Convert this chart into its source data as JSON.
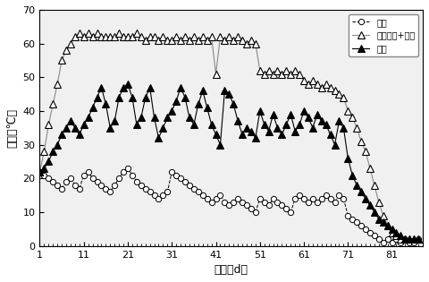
{
  "title": "",
  "xlabel": "时间（d）",
  "ylabel": "温度（℃）",
  "xlim": [
    1,
    88
  ],
  "ylim": [
    0,
    70
  ],
  "yticks": [
    0,
    10,
    20,
    30,
    40,
    50,
    60,
    70
  ],
  "xticks": [
    1,
    11,
    21,
    31,
    41,
    51,
    61,
    71,
    81
  ],
  "legend_labels": [
    "气温",
    "接种菌剂+盖膜",
    "对照"
  ],
  "air_temp_x": [
    1,
    2,
    3,
    4,
    5,
    6,
    7,
    8,
    9,
    10,
    11,
    12,
    13,
    14,
    15,
    16,
    17,
    18,
    19,
    20,
    21,
    22,
    23,
    24,
    25,
    26,
    27,
    28,
    29,
    30,
    31,
    32,
    33,
    34,
    35,
    36,
    37,
    38,
    39,
    40,
    41,
    42,
    43,
    44,
    45,
    46,
    47,
    48,
    49,
    50,
    51,
    52,
    53,
    54,
    55,
    56,
    57,
    58,
    59,
    60,
    61,
    62,
    63,
    64,
    65,
    66,
    67,
    68,
    69,
    70,
    71,
    72,
    73,
    74,
    75,
    76,
    77,
    78,
    79,
    80,
    81,
    82,
    83,
    84,
    85,
    86,
    87
  ],
  "air_temp_y": [
    22,
    21,
    20,
    19,
    18,
    17,
    19,
    20,
    18,
    17,
    21,
    22,
    20,
    19,
    18,
    17,
    16,
    18,
    20,
    22,
    23,
    21,
    19,
    18,
    17,
    16,
    15,
    14,
    15,
    16,
    22,
    21,
    20,
    19,
    18,
    17,
    16,
    15,
    14,
    13,
    14,
    15,
    13,
    12,
    13,
    14,
    13,
    12,
    11,
    10,
    14,
    13,
    12,
    14,
    13,
    12,
    11,
    10,
    14,
    15,
    14,
    13,
    14,
    13,
    14,
    15,
    14,
    13,
    15,
    14,
    9,
    8,
    7,
    6,
    5,
    4,
    3,
    2,
    1,
    2,
    1,
    2,
    1,
    2,
    1,
    1,
    2
  ],
  "inoculated_x": [
    1,
    2,
    3,
    4,
    5,
    6,
    7,
    8,
    9,
    10,
    11,
    12,
    13,
    14,
    15,
    16,
    17,
    18,
    19,
    20,
    21,
    22,
    23,
    24,
    25,
    26,
    27,
    28,
    29,
    30,
    31,
    32,
    33,
    34,
    35,
    36,
    37,
    38,
    39,
    40,
    41,
    42,
    43,
    44,
    45,
    46,
    47,
    48,
    49,
    50,
    51,
    52,
    53,
    54,
    55,
    56,
    57,
    58,
    59,
    60,
    61,
    62,
    63,
    64,
    65,
    66,
    67,
    68,
    69,
    70,
    71,
    72,
    73,
    74,
    75,
    76,
    77,
    78,
    79,
    80,
    81,
    82,
    83,
    84,
    85,
    86,
    87
  ],
  "inoculated_y": [
    22,
    28,
    36,
    42,
    48,
    55,
    58,
    60,
    62,
    63,
    62,
    63,
    62,
    63,
    62,
    62,
    62,
    62,
    63,
    62,
    62,
    62,
    63,
    62,
    61,
    62,
    62,
    61,
    62,
    61,
    61,
    62,
    61,
    62,
    61,
    62,
    61,
    62,
    61,
    62,
    51,
    62,
    61,
    62,
    61,
    62,
    61,
    60,
    61,
    60,
    52,
    51,
    52,
    51,
    52,
    51,
    52,
    51,
    52,
    51,
    49,
    48,
    49,
    48,
    47,
    48,
    47,
    46,
    45,
    44,
    40,
    38,
    35,
    31,
    28,
    23,
    18,
    13,
    9,
    6,
    4,
    3,
    2,
    2,
    2,
    2,
    2
  ],
  "control_x": [
    1,
    2,
    3,
    4,
    5,
    6,
    7,
    8,
    9,
    10,
    11,
    12,
    13,
    14,
    15,
    16,
    17,
    18,
    19,
    20,
    21,
    22,
    23,
    24,
    25,
    26,
    27,
    28,
    29,
    30,
    31,
    32,
    33,
    34,
    35,
    36,
    37,
    38,
    39,
    40,
    41,
    42,
    43,
    44,
    45,
    46,
    47,
    48,
    49,
    50,
    51,
    52,
    53,
    54,
    55,
    56,
    57,
    58,
    59,
    60,
    61,
    62,
    63,
    64,
    65,
    66,
    67,
    68,
    69,
    70,
    71,
    72,
    73,
    74,
    75,
    76,
    77,
    78,
    79,
    80,
    81,
    82,
    83,
    84,
    85,
    86,
    87
  ],
  "control_y": [
    22,
    23,
    25,
    28,
    30,
    33,
    35,
    37,
    35,
    33,
    36,
    38,
    41,
    44,
    47,
    42,
    35,
    37,
    44,
    47,
    48,
    44,
    36,
    38,
    44,
    47,
    38,
    32,
    35,
    38,
    40,
    43,
    47,
    44,
    38,
    36,
    42,
    46,
    41,
    36,
    33,
    30,
    46,
    45,
    42,
    37,
    33,
    35,
    34,
    32,
    40,
    36,
    34,
    39,
    35,
    33,
    36,
    39,
    34,
    36,
    40,
    38,
    35,
    39,
    37,
    36,
    33,
    30,
    37,
    35,
    26,
    21,
    18,
    16,
    14,
    12,
    10,
    8,
    7,
    6,
    5,
    4,
    3,
    2,
    2,
    2,
    2
  ],
  "bg_color": "#f0f0f0",
  "line_color": "#000000"
}
